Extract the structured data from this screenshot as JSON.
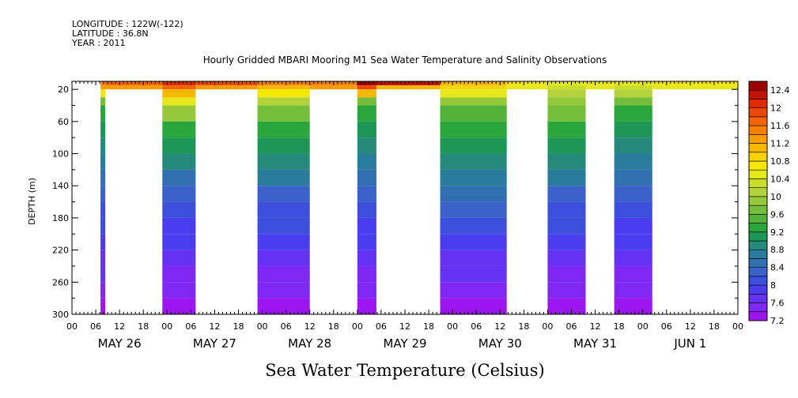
{
  "header": {
    "longitude": "LONGITUDE : 122W(-122)",
    "latitude": "LATITUDE : 36.8N",
    "year": "YEAR : 2011"
  },
  "chart_data": {
    "type": "heatmap",
    "title": "Hourly Gridded MBARI Mooring M1 Sea Water Temperature and Salinity Observations",
    "xlabel": "",
    "ylabel": "DEPTH (m)",
    "bottom_label": "Sea Water Temperature (Celsius)",
    "x_hour_ticks": [
      "00",
      "06",
      "12",
      "18",
      "00",
      "06",
      "12",
      "18",
      "00",
      "06",
      "12",
      "18",
      "00",
      "06",
      "12",
      "18",
      "00",
      "06",
      "12",
      "18",
      "00",
      "06",
      "12",
      "18",
      "00",
      "06",
      "12",
      "18",
      "00"
    ],
    "x_day_labels": [
      "MAY 26",
      "MAY 27",
      "MAY 28",
      "MAY 29",
      "MAY 30",
      "MAY 31",
      "JUN  1"
    ],
    "x_range_days": [
      0,
      7
    ],
    "ylim": [
      300,
      10
    ],
    "y_ticks": [
      20,
      60,
      100,
      140,
      180,
      220,
      260,
      300
    ],
    "colorbar": {
      "labels": [
        "12.4",
        "12",
        "11.6",
        "11.2",
        "10.8",
        "10.4",
        "10",
        "9.6",
        "9.2",
        "8.8",
        "8.4",
        "8",
        "7.6",
        "7.2"
      ],
      "levels": [
        7.2,
        7.4,
        7.6,
        7.8,
        8.0,
        8.2,
        8.4,
        8.6,
        8.8,
        9.0,
        9.2,
        9.4,
        9.6,
        9.8,
        10.0,
        10.2,
        10.4,
        10.6,
        10.8,
        11.0,
        11.2,
        11.4,
        11.6,
        11.8,
        12.0,
        12.2,
        12.4,
        12.6
      ],
      "colors": [
        "#9b16f0",
        "#7f28f4",
        "#6432f2",
        "#4a3df0",
        "#3c4fdc",
        "#3a62c8",
        "#3070b0",
        "#2a7c9c",
        "#258a7a",
        "#1e9656",
        "#2aa63c",
        "#52b23a",
        "#74be3c",
        "#96c83c",
        "#b4d23c",
        "#cade28",
        "#e6e81a",
        "#f5e800",
        "#f8d400",
        "#f8b800",
        "#f89c00",
        "#f88000",
        "#f46400",
        "#ec4800",
        "#dc2c00",
        "#c01400",
        "#9c0000"
      ]
    },
    "profile_depths_m": [
      10,
      15,
      20,
      30,
      40,
      60,
      80,
      100,
      120,
      140,
      160,
      180,
      200,
      220,
      240,
      260,
      280,
      300
    ],
    "columns": [
      {
        "t": [
          0.0,
          0.3
        ],
        "temps": null
      },
      {
        "t": [
          0.3,
          0.35
        ],
        "temps": [
          11.4,
          11.2,
          10.6,
          9.6,
          9.2,
          9.0,
          8.9,
          8.7,
          8.5,
          8.3,
          8.1,
          8.0,
          7.9,
          7.7,
          7.6,
          7.4,
          7.3,
          7.2
        ]
      },
      {
        "t": [
          0.35,
          0.95
        ],
        "temps": [
          11.6,
          11.3,
          null,
          null,
          null,
          null,
          null,
          null,
          null,
          null,
          null,
          null,
          null,
          null,
          null,
          null,
          null,
          null
        ]
      },
      {
        "t": [
          0.95,
          1.3
        ],
        "temps": [
          12.0,
          11.6,
          11.0,
          10.4,
          9.8,
          9.2,
          9.0,
          8.8,
          8.5,
          8.3,
          8.1,
          7.9,
          7.8,
          7.7,
          7.5,
          7.4,
          7.3,
          7.2
        ]
      },
      {
        "t": [
          1.3,
          1.95
        ],
        "temps": [
          11.8,
          11.2,
          null,
          null,
          null,
          null,
          null,
          null,
          null,
          null,
          null,
          null,
          null,
          null,
          null,
          null,
          null,
          null
        ]
      },
      {
        "t": [
          1.95,
          2.5
        ],
        "temps": [
          11.4,
          11.0,
          10.6,
          10.0,
          9.6,
          9.2,
          9.0,
          8.8,
          8.6,
          8.3,
          8.1,
          8.0,
          7.8,
          7.7,
          7.5,
          7.4,
          7.3,
          7.2
        ]
      },
      {
        "t": [
          2.5,
          3.0
        ],
        "temps": [
          11.4,
          11.2,
          null,
          null,
          null,
          null,
          null,
          null,
          null,
          null,
          null,
          null,
          null,
          null,
          null,
          null,
          null,
          null
        ]
      },
      {
        "t": [
          3.0,
          3.2
        ],
        "temps": [
          12.4,
          11.8,
          11.0,
          9.6,
          9.2,
          9.0,
          8.8,
          8.6,
          8.4,
          8.2,
          8.0,
          7.9,
          7.8,
          7.6,
          7.5,
          7.4,
          7.3,
          7.2
        ]
      },
      {
        "t": [
          3.2,
          3.87
        ],
        "temps": [
          12.2,
          11.0,
          null,
          null,
          null,
          null,
          null,
          null,
          null,
          null,
          null,
          null,
          null,
          null,
          null,
          null,
          null,
          null
        ]
      },
      {
        "t": [
          3.87,
          4.57
        ],
        "temps": [
          11.0,
          10.8,
          10.4,
          9.8,
          9.4,
          9.2,
          9.0,
          8.8,
          8.6,
          8.4,
          8.2,
          8.0,
          7.9,
          7.7,
          7.6,
          7.4,
          7.3,
          7.2
        ]
      },
      {
        "t": [
          4.57,
          5.0
        ],
        "temps": [
          10.6,
          10.4,
          null,
          null,
          null,
          null,
          null,
          null,
          null,
          null,
          null,
          null,
          null,
          null,
          null,
          null,
          null,
          null
        ]
      },
      {
        "t": [
          5.0,
          5.4
        ],
        "temps": [
          10.4,
          10.2,
          10.0,
          9.8,
          9.6,
          9.2,
          9.0,
          8.8,
          8.6,
          8.3,
          8.1,
          8.0,
          7.8,
          7.7,
          7.5,
          7.4,
          7.3,
          7.2
        ]
      },
      {
        "t": [
          5.4,
          5.7
        ],
        "temps": [
          10.4,
          10.4,
          null,
          null,
          null,
          null,
          null,
          null,
          null,
          null,
          null,
          null,
          null,
          null,
          null,
          null,
          null,
          null
        ]
      },
      {
        "t": [
          5.7,
          6.1
        ],
        "temps": [
          10.4,
          10.2,
          10.0,
          9.6,
          9.2,
          9.0,
          8.8,
          8.6,
          8.4,
          8.2,
          8.0,
          7.9,
          7.8,
          7.6,
          7.5,
          7.4,
          7.3,
          7.2
        ]
      },
      {
        "t": [
          6.1,
          7.0
        ],
        "temps": [
          10.6,
          10.4,
          null,
          null,
          null,
          null,
          null,
          null,
          null,
          null,
          null,
          null,
          null,
          null,
          null,
          null,
          null,
          null
        ]
      }
    ]
  }
}
